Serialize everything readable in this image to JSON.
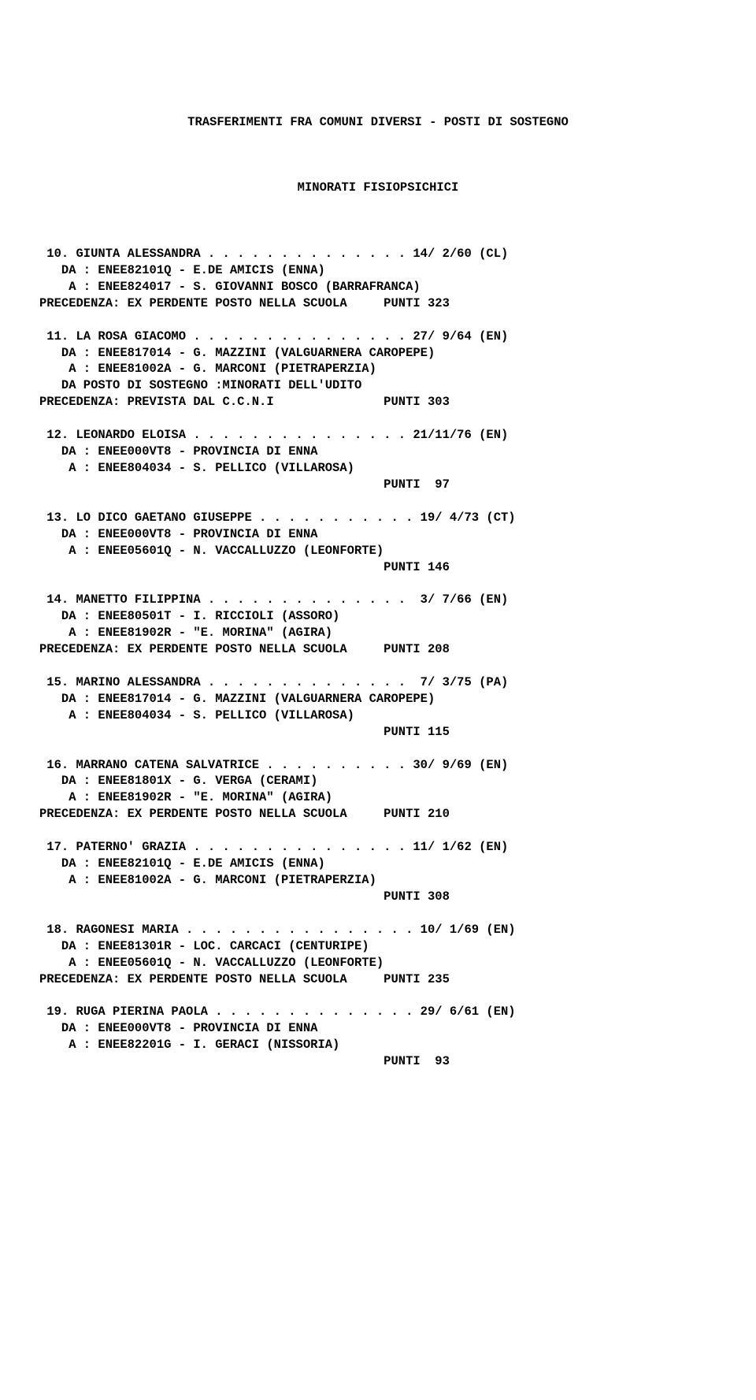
{
  "header": {
    "title": "TRASFERIMENTI FRA COMUNI DIVERSI - POSTI DI SOSTEGNO",
    "subtitle": "MINORATI FISIOPSICHICI"
  },
  "entries": [
    {
      "num": "10",
      "name": "GIUNTA ALESSANDRA",
      "dots": " . . . . . . . . . . . . . . ",
      "date": "14/ 2/60",
      "prov": "(CL)",
      "da": "DA : ENEE82101Q - E.DE AMICIS (ENNA)",
      "a": " A : ENEE824017 - S. GIOVANNI BOSCO (BARRAFRANCA)",
      "prec": "PRECEDENZA: EX PERDENTE POSTO NELLA SCUOLA",
      "punti": "PUNTI 323",
      "extra": ""
    },
    {
      "num": "11",
      "name": "LA ROSA GIACOMO",
      "dots": " . . . . . . . . . . . . . . . ",
      "date": "27/ 9/64",
      "prov": "(EN)",
      "da": "DA : ENEE817014 - G. MAZZINI (VALGUARNERA CAROPEPE)",
      "a": " A : ENEE81002A - G. MARCONI (PIETRAPERZIA)",
      "extra": "   DA POSTO DI SOSTEGNO :MINORATI DELL'UDITO",
      "prec": "PRECEDENZA: PREVISTA DAL C.C.N.I",
      "punti": "PUNTI 303"
    },
    {
      "num": "12",
      "name": "LEONARDO ELOISA",
      "dots": " . . . . . . . . . . . . . . . ",
      "date": "21/11/76",
      "prov": "(EN)",
      "da": "DA : ENEE000VT8 - PROVINCIA DI ENNA",
      "a": " A : ENEE804034 - S. PELLICO (VILLAROSA)",
      "extra": "",
      "prec": "",
      "punti": "PUNTI  97"
    },
    {
      "num": "13",
      "name": "LO DICO GAETANO GIUSEPPE",
      "dots": " . . . . . . . . . . . ",
      "date": "19/ 4/73",
      "prov": "(CT)",
      "da": "DA : ENEE000VT8 - PROVINCIA DI ENNA",
      "a": " A : ENEE05601Q - N. VACCALLUZZO (LEONFORTE)",
      "extra": "",
      "prec": "",
      "punti": "PUNTI 146"
    },
    {
      "num": "14",
      "name": "MANETTO FILIPPINA",
      "dots": " . . . . . . . . . . . . . . ",
      "date": " 3/ 7/66",
      "prov": "(EN)",
      "da": "DA : ENEE80501T - I. RICCIOLI (ASSORO)",
      "a": " A : ENEE81902R - \"E. MORINA\" (AGIRA)",
      "extra": "",
      "prec": "PRECEDENZA: EX PERDENTE POSTO NELLA SCUOLA",
      "punti": "PUNTI 208"
    },
    {
      "num": "15",
      "name": "MARINO ALESSANDRA",
      "dots": " . . . . . . . . . . . . . . ",
      "date": " 7/ 3/75",
      "prov": "(PA)",
      "da": "DA : ENEE817014 - G. MAZZINI (VALGUARNERA CAROPEPE)",
      "a": " A : ENEE804034 - S. PELLICO (VILLAROSA)",
      "extra": "",
      "prec": "",
      "punti": "PUNTI 115"
    },
    {
      "num": "16",
      "name": "MARRANO CATENA SALVATRICE",
      "dots": " . . . . . . . . . . ",
      "date": "30/ 9/69",
      "prov": "(EN)",
      "da": "DA : ENEE81801X - G. VERGA (CERAMI)",
      "a": " A : ENEE81902R - \"E. MORINA\" (AGIRA)",
      "extra": "",
      "prec": "PRECEDENZA: EX PERDENTE POSTO NELLA SCUOLA",
      "punti": "PUNTI 210"
    },
    {
      "num": "17",
      "name": "PATERNO' GRAZIA",
      "dots": " . . . . . . . . . . . . . . . ",
      "date": "11/ 1/62",
      "prov": "(EN)",
      "da": "DA : ENEE82101Q - E.DE AMICIS (ENNA)",
      "a": " A : ENEE81002A - G. MARCONI (PIETRAPERZIA)",
      "extra": "",
      "prec": "",
      "punti": "PUNTI 308"
    },
    {
      "num": "18",
      "name": "RAGONESI MARIA",
      "dots": " . . . . . . . . . . . . . . . . ",
      "date": "10/ 1/69",
      "prov": "(EN)",
      "da": "DA : ENEE81301R - LOC. CARCACI (CENTURIPE)",
      "a": " A : ENEE05601Q - N. VACCALLUZZO (LEONFORTE)",
      "extra": "",
      "prec": "PRECEDENZA: EX PERDENTE POSTO NELLA SCUOLA",
      "punti": "PUNTI 235"
    },
    {
      "num": "19",
      "name": "RUGA PIERINA PAOLA",
      "dots": " . . . . . . . . . . . . . . ",
      "date": "29/ 6/61",
      "prov": "(EN)",
      "da": "DA : ENEE000VT8 - PROVINCIA DI ENNA",
      "a": " A : ENEE82201G - I. GERACI (NISSORIA)",
      "extra": "",
      "prec": "",
      "punti": "PUNTI  93"
    }
  ],
  "layout": {
    "line_width": 56,
    "indent": "   "
  }
}
